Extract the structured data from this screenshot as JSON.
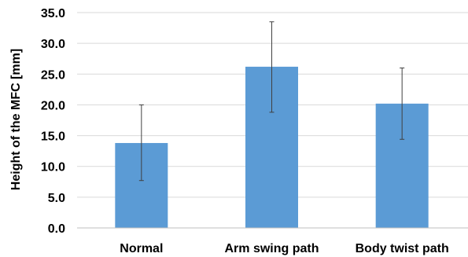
{
  "chart_data": {
    "type": "bar",
    "title": "",
    "xlabel": "",
    "ylabel": "Height  of the MFC [mm]",
    "categories": [
      "Normal",
      "Arm swing path",
      "Body twist path"
    ],
    "values": [
      13.8,
      26.2,
      20.2
    ],
    "error_low": [
      7.7,
      18.8,
      14.4
    ],
    "error_high": [
      20.0,
      33.5,
      26.0
    ],
    "ylim": [
      0,
      35
    ],
    "yticks": [
      0,
      5,
      10,
      15,
      20,
      25,
      30,
      35
    ],
    "ytick_labels": [
      "0.0",
      "5.0",
      "10.0",
      "15.0",
      "20.0",
      "25.0",
      "30.0",
      "35.0"
    ],
    "grid": true,
    "legend": "none",
    "colors": {
      "bar": "#5b9bd5",
      "grid": "#d9d9d9",
      "axis": "#bfbfbf",
      "error_bar": "#404040"
    }
  }
}
